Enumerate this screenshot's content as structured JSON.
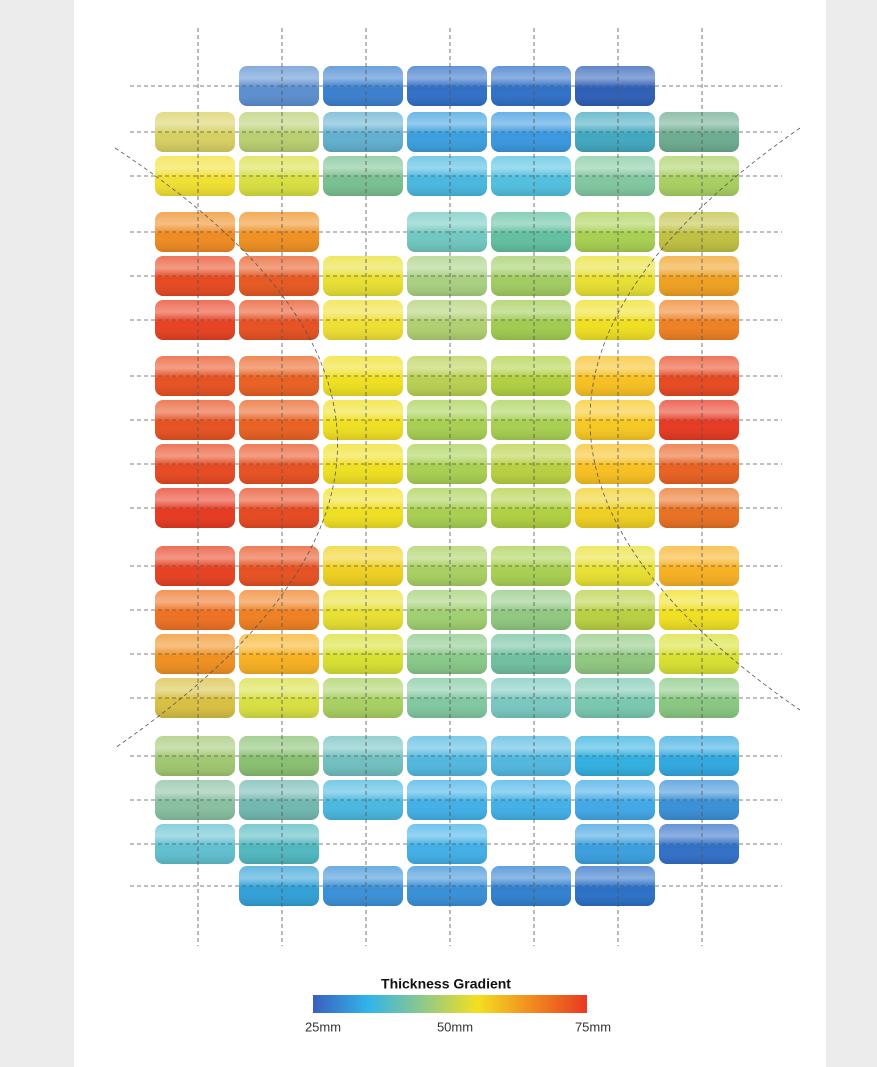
{
  "legend": {
    "title": "Thickness Gradient",
    "labels": [
      "25mm",
      "50mm",
      "75mm"
    ],
    "colors": [
      "#3a5fc0",
      "#30b4ea",
      "#8ec98a",
      "#f2e020",
      "#f28a20",
      "#e83a20"
    ]
  }
}
